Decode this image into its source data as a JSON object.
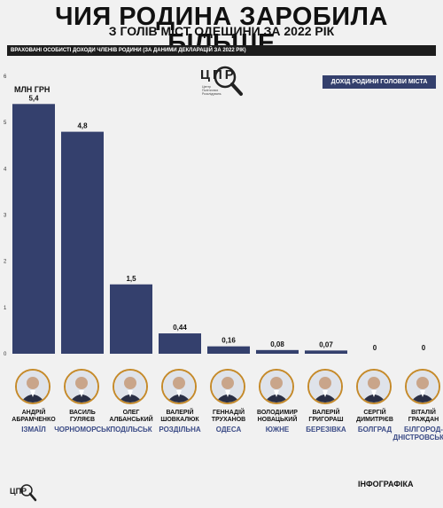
{
  "header": {
    "title": "ЧИЯ РОДИНА ЗАРОБИЛА БІЛЬШЕ",
    "subtitle": "З ГОЛІВ МІСТ ОДЕЩИНИ ЗА 2022 РІК",
    "note": "ВРАХОВАНІ ОСОБИСТІ ДОХОДИ ЧЛЕНІВ РОДИНИ (ЗА ДАНИМИ ДЕКЛАРАЦІЙ ЗА 2022 РІК)"
  },
  "logo": {
    "text": "ЦПР",
    "small_lines": [
      "Центр",
      "Політичних",
      "Розслідувань"
    ]
  },
  "footer": {
    "label": "ІНФОГРАФІКА",
    "logo_text": "ЦПР"
  },
  "colors": {
    "bar": "#34406d",
    "city": "#3b4b86",
    "avatar_border": "#c58a2a",
    "background": "#f1f1f1"
  },
  "chart_data": {
    "type": "bar",
    "ylabel": "МЛН ГРН",
    "ylim": [
      0,
      6
    ],
    "yticks": [
      0,
      1,
      2,
      3,
      4,
      5,
      6
    ],
    "legend": "ДОХІД РОДИНИ ГОЛОВИ МІСТА",
    "legend_position": "top-right",
    "grid": false,
    "values": [
      5.4,
      4.8,
      1.5,
      0.44,
      0.16,
      0.08,
      0.07,
      0,
      0
    ],
    "value_labels": [
      "5,4",
      "4,8",
      "1,5",
      "0,44",
      "0,16",
      "0,08",
      "0,07",
      "0",
      "0"
    ],
    "categories": [
      {
        "name_line1": "АНДРІЙ",
        "name_line2": "АБРАМЧЕНКО",
        "city": "ІЗМАЇЛ"
      },
      {
        "name_line1": "ВАСИЛЬ",
        "name_line2": "ГУЛЯЄВ",
        "city": "ЧОРНОМОРСЬК"
      },
      {
        "name_line1": "ОЛЕГ",
        "name_line2": "АЛБАНСЬКИЙ",
        "city": "ПОДІЛЬСЬК"
      },
      {
        "name_line1": "ВАЛЕРІЙ",
        "name_line2": "ШОВКАЛЮК",
        "city": "РОЗДІЛЬНА"
      },
      {
        "name_line1": "ГЕННАДІЙ",
        "name_line2": "ТРУХАНОВ",
        "city": "ОДЕСА"
      },
      {
        "name_line1": "ВОЛОДИМИР",
        "name_line2": "НОВАЦЬКИЙ",
        "city": "ЮЖНЕ"
      },
      {
        "name_line1": "ВАЛЕРІЙ",
        "name_line2": "ГРИГОРАШ",
        "city": "БЕРЕЗІВКА"
      },
      {
        "name_line1": "СЕРГІЙ",
        "name_line2": "ДИМИТРІЄВ",
        "city": "БОЛГРАД"
      },
      {
        "name_line1": "ВІТАЛІЙ",
        "name_line2": "ГРАЖДАН",
        "city": "БІЛГОРОД-ДНІСТРОВСЬКИЙ"
      }
    ]
  }
}
